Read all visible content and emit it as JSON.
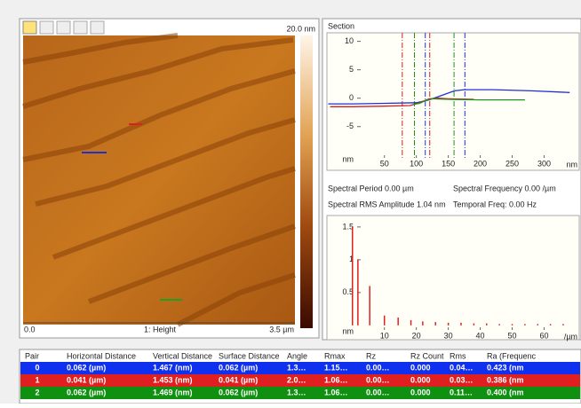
{
  "image_panel": {
    "scale_max": "20.0 nm",
    "x_start": "0.0",
    "channel": "1: Height",
    "x_end": "3.5 µm"
  },
  "section": {
    "title": "Section",
    "type": "line",
    "xlim": [
      -40,
      355
    ],
    "ylim": [
      -10.5,
      11.5
    ],
    "xticks": [
      50,
      100,
      150,
      200,
      250,
      300
    ],
    "yticks": [
      10,
      5,
      0,
      -5
    ],
    "x_unit": "nm",
    "y_unit": "nm",
    "series": [
      {
        "color": "#2030d0",
        "x": [
          -38,
          0,
          50,
          100,
          120,
          140,
          160,
          175,
          220,
          280,
          340
        ],
        "y": [
          -1.0,
          -1.0,
          -0.9,
          -0.8,
          -0.3,
          0.5,
          1.3,
          1.5,
          1.5,
          1.3,
          1.0
        ]
      },
      {
        "color": "#d02020",
        "x": [
          -35,
          0,
          50,
          90,
          105,
          120,
          135,
          150,
          190
        ],
        "y": [
          -1.5,
          -1.5,
          -1.4,
          -1.3,
          -0.8,
          -0.1,
          0.0,
          -0.1,
          -0.2
        ]
      },
      {
        "color": "#209020",
        "x": [
          95,
          105,
          115,
          125,
          150,
          200,
          270
        ],
        "y": [
          -1.1,
          -0.9,
          -0.4,
          -0.1,
          -0.2,
          -0.3,
          -0.3
        ]
      }
    ],
    "cursors": [
      {
        "color": "#d02020",
        "x": 78
      },
      {
        "color": "#209020",
        "x": 97
      },
      {
        "color": "#2030d0",
        "x": 114
      },
      {
        "color": "#d02020",
        "x": 121
      },
      {
        "color": "#209020",
        "x": 159
      },
      {
        "color": "#2030d0",
        "x": 176
      }
    ]
  },
  "spectrum_info": {
    "period": "Spectral Period 0.00 µm",
    "frequency": "Spectral Frequency 0.00 /µm",
    "rms": "Spectral RMS Amplitude 1.04 nm",
    "temporal": "Temporal Freq: 0.00 Hz"
  },
  "spectrum": {
    "type": "bar",
    "color": "#e02020",
    "xlim": [
      -8,
      71
    ],
    "ylim": [
      -0.07,
      1.62
    ],
    "xticks": [
      10,
      20,
      30,
      40,
      50,
      60
    ],
    "yticks": [
      1.5,
      1,
      0.5
    ],
    "x_unit": "/µm",
    "y_unit": "nm",
    "x": [
      0,
      1.7,
      5.4,
      10,
      14.3,
      18.3,
      22,
      26,
      30,
      34,
      38,
      42,
      46,
      50,
      54,
      58,
      62,
      66
    ],
    "values": [
      1.5,
      1.0,
      0.6,
      0.15,
      0.12,
      0.08,
      0.06,
      0.05,
      0.04,
      0.04,
      0.03,
      0.03,
      0.02,
      0.02,
      0.02,
      0.02,
      0.02,
      0.02
    ]
  },
  "table": {
    "header": [
      "Pair",
      "Horizontal Distance",
      "Vertical Distance",
      "Surface Distance",
      "Angle",
      "Rmax",
      "Rz",
      "Rz Count",
      "Rms",
      "Ra (Frequenc"
    ],
    "rows": [
      [
        "0",
        "0.062 (µm)",
        "1.467 (nm)",
        "0.062 (µm)",
        "1.3…",
        "1.15…",
        "0.00…",
        "0.000",
        "0.04…",
        "0.423 (nm"
      ],
      [
        "1",
        "0.041 (µm)",
        "1.453 (nm)",
        "0.041 (µm)",
        "2.0…",
        "1.06…",
        "0.00…",
        "0.000",
        "0.03…",
        "0.386 (nm"
      ],
      [
        "2",
        "0.062 (µm)",
        "1.469 (nm)",
        "0.062 (µm)",
        "1.3…",
        "1.06…",
        "0.00…",
        "0.000",
        "0.11…",
        "0.400 (nm"
      ]
    ],
    "row_colors": [
      "#1030f0",
      "#e02020",
      "#109010"
    ]
  }
}
